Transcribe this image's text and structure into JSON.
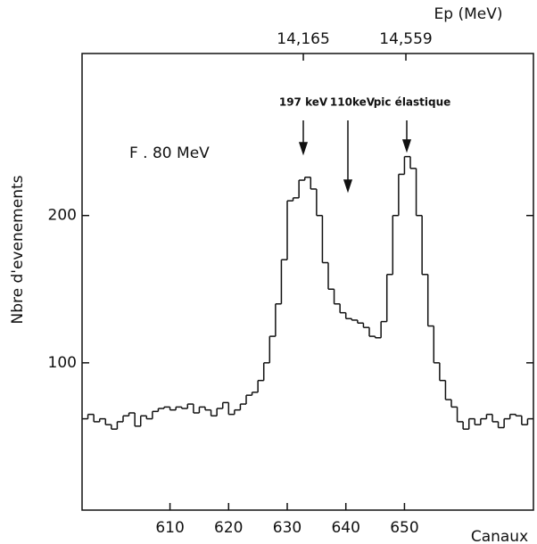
{
  "chart_data": {
    "type": "histogram",
    "ylabel": "Nbre d'evenements",
    "xlabel": "Canaux",
    "x2label": "Ep (MeV)",
    "annotations": [
      "F . 80 MeV",
      "197 keV",
      "110keV",
      "pic élastique"
    ],
    "bins": [
      595,
      596,
      597,
      598,
      599,
      600,
      601,
      602,
      603,
      604,
      605,
      606,
      607,
      608,
      609,
      610,
      611,
      612,
      613,
      614,
      615,
      616,
      617,
      618,
      619,
      620,
      621,
      622,
      623,
      624,
      625,
      626,
      627,
      628,
      629,
      630,
      631,
      632,
      633,
      634,
      635,
      636,
      637,
      638,
      639,
      640,
      641,
      642,
      643,
      644,
      645,
      646,
      647,
      648,
      649,
      650,
      651,
      652,
      653,
      654,
      655,
      656,
      657,
      658,
      659,
      660,
      661,
      662,
      663,
      664,
      665,
      666,
      667,
      668,
      669,
      670,
      671,
      672
    ],
    "values": [
      62,
      65,
      60,
      62,
      58,
      55,
      60,
      64,
      66,
      57,
      64,
      62,
      67,
      69,
      70,
      68,
      70,
      69,
      72,
      66,
      70,
      68,
      64,
      69,
      73,
      65,
      68,
      72,
      78,
      80,
      88,
      100,
      118,
      140,
      170,
      210,
      212,
      224,
      226,
      218,
      200,
      168,
      150,
      140,
      134,
      130,
      129,
      127,
      124,
      118,
      117,
      128,
      160,
      200,
      228,
      240,
      232,
      200,
      160,
      125,
      100,
      88,
      75,
      70,
      60,
      55,
      62,
      58,
      62,
      65,
      60,
      56,
      62,
      65,
      64,
      58,
      62
    ],
    "color": "#111111",
    "xlim": [
      595,
      672
    ],
    "xticks": [
      610,
      620,
      630,
      640,
      650
    ],
    "ylim": [
      0,
      310
    ],
    "yticks": [
      100,
      200
    ],
    "x2lim": [
      13.315,
      15.049
    ],
    "x2ticks": [
      {
        "value": 14.165,
        "label": "14,165"
      },
      {
        "value": 14.559,
        "label": "14,559"
      }
    ],
    "grid": false
  }
}
